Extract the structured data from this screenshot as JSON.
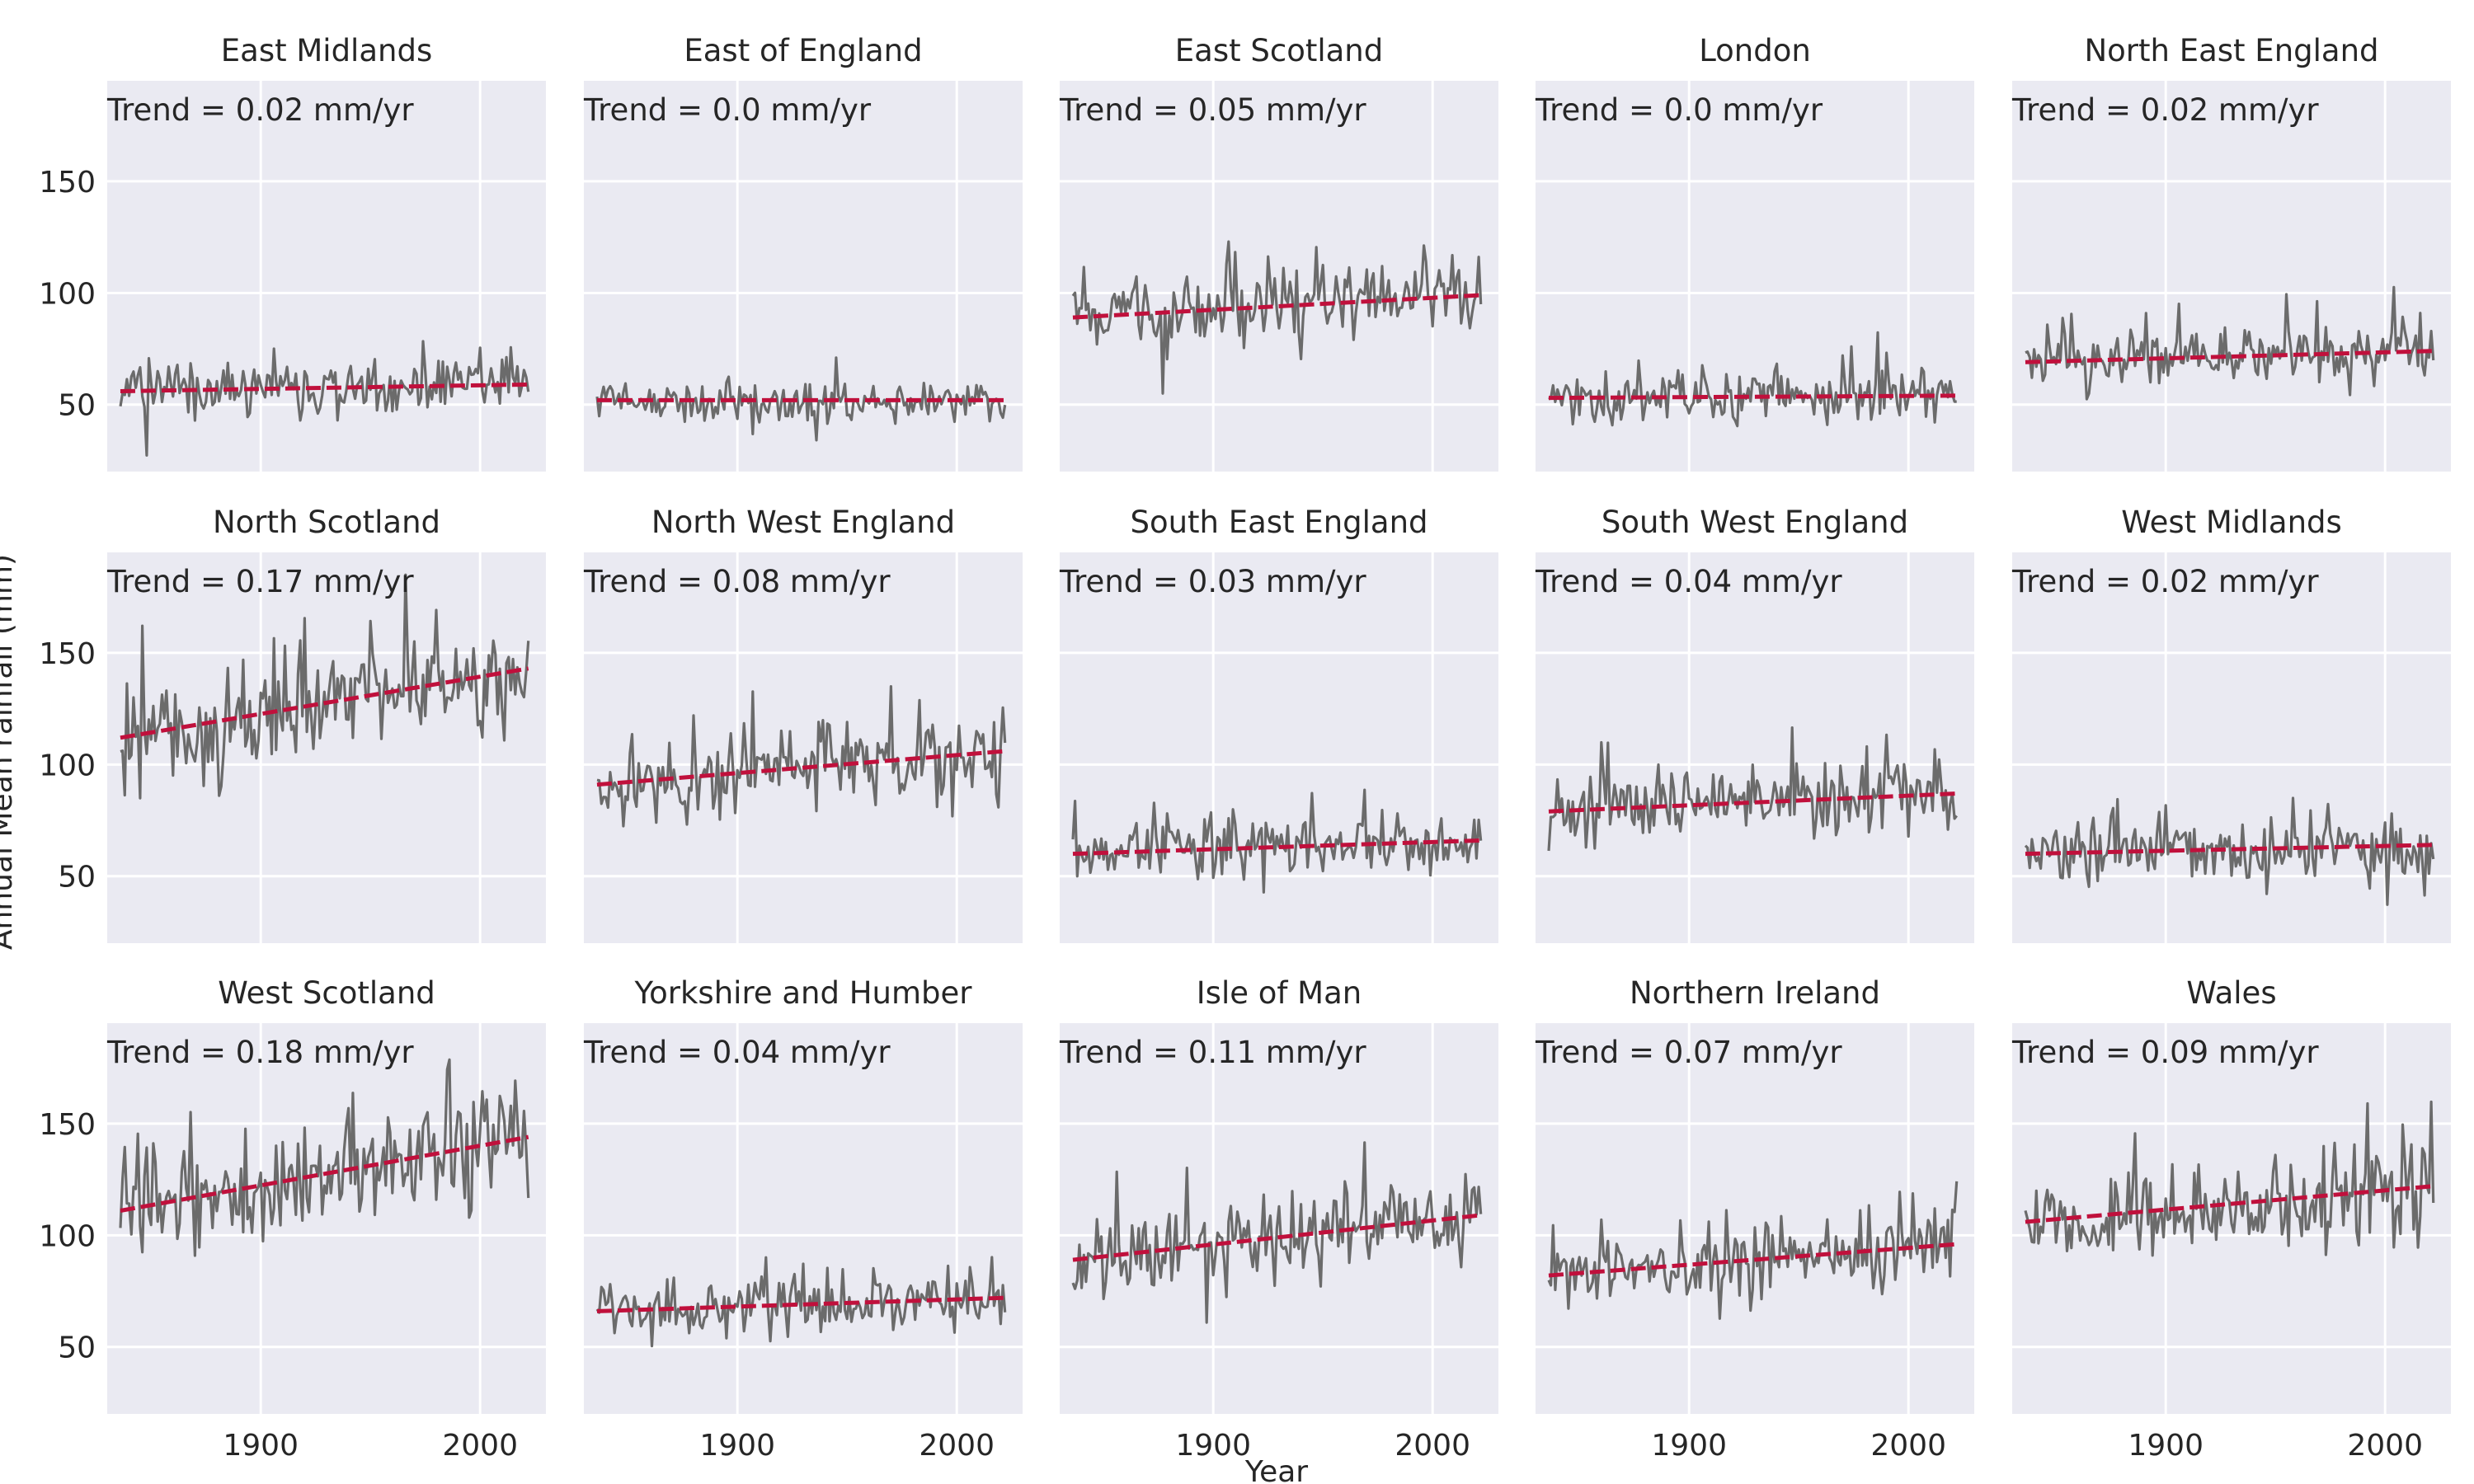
{
  "figure": {
    "xlabel": "Year",
    "ylabel": "Annual Mean rainfall (mm)",
    "x_tick_labels": [
      "1900",
      "2000"
    ],
    "y_tick_labels": [
      "50",
      "100",
      "150"
    ]
  },
  "colors": {
    "panel_bg": "#eaeaf2",
    "grid": "#ffffff",
    "series": "#6b6b6b",
    "trend": "#c0103c",
    "text": "#262626"
  },
  "chart_data": [
    {
      "type": "line",
      "title": "East Midlands",
      "annotation": "Trend = 0.02 mm/yr",
      "xlim": [
        1830,
        2030
      ],
      "ylim": [
        20,
        195
      ],
      "start_year": 1836,
      "end_year": 2022,
      "mean": 57,
      "spread": 7,
      "trend_start": 56,
      "trend_end": 59,
      "xticks": [
        1900,
        2000
      ],
      "yticks": [
        50,
        100,
        150
      ],
      "seed": 1
    },
    {
      "type": "line",
      "title": "East of England",
      "annotation": "Trend = 0.0 mm/yr",
      "xlim": [
        1830,
        2030
      ],
      "ylim": [
        20,
        195
      ],
      "start_year": 1836,
      "end_year": 2022,
      "mean": 52,
      "spread": 6,
      "trend_start": 52,
      "trend_end": 52,
      "xticks": [
        1900,
        2000
      ],
      "yticks": [
        50,
        100,
        150
      ],
      "seed": 2
    },
    {
      "type": "line",
      "title": "East Scotland",
      "annotation": "Trend = 0.05 mm/yr",
      "xlim": [
        1830,
        2030
      ],
      "ylim": [
        20,
        195
      ],
      "start_year": 1836,
      "end_year": 2022,
      "mean": 94,
      "spread": 11,
      "trend_start": 89,
      "trend_end": 99,
      "xticks": [
        1900,
        2000
      ],
      "yticks": [
        50,
        100,
        150
      ],
      "seed": 3
    },
    {
      "type": "line",
      "title": "London",
      "annotation": "Trend = 0.0 mm/yr",
      "xlim": [
        1830,
        2030
      ],
      "ylim": [
        20,
        195
      ],
      "start_year": 1836,
      "end_year": 2022,
      "mean": 53,
      "spread": 7,
      "trend_start": 53,
      "trend_end": 54,
      "xticks": [
        1900,
        2000
      ],
      "yticks": [
        50,
        100,
        150
      ],
      "seed": 4
    },
    {
      "type": "line",
      "title": "North East England",
      "annotation": "Trend = 0.02 mm/yr",
      "xlim": [
        1830,
        2030
      ],
      "ylim": [
        20,
        195
      ],
      "start_year": 1836,
      "end_year": 2022,
      "mean": 71,
      "spread": 8,
      "trend_start": 69,
      "trend_end": 74,
      "xticks": [
        1900,
        2000
      ],
      "yticks": [
        50,
        100,
        150
      ],
      "seed": 5
    },
    {
      "type": "line",
      "title": "North Scotland",
      "annotation": "Trend = 0.17 mm/yr",
      "xlim": [
        1830,
        2030
      ],
      "ylim": [
        20,
        195
      ],
      "start_year": 1836,
      "end_year": 2022,
      "mean": 127,
      "spread": 14,
      "trend_start": 112,
      "trend_end": 143,
      "xticks": [
        1900,
        2000
      ],
      "yticks": [
        50,
        100,
        150
      ],
      "seed": 6
    },
    {
      "type": "line",
      "title": "North West England",
      "annotation": "Trend = 0.08 mm/yr",
      "xlim": [
        1830,
        2030
      ],
      "ylim": [
        20,
        195
      ],
      "start_year": 1836,
      "end_year": 2022,
      "mean": 98,
      "spread": 11,
      "trend_start": 91,
      "trend_end": 106,
      "xticks": [
        1900,
        2000
      ],
      "yticks": [
        50,
        100,
        150
      ],
      "seed": 7
    },
    {
      "type": "line",
      "title": "South East England",
      "annotation": "Trend = 0.03 mm/yr",
      "xlim": [
        1830,
        2030
      ],
      "ylim": [
        20,
        195
      ],
      "start_year": 1836,
      "end_year": 2022,
      "mean": 63,
      "spread": 8,
      "trend_start": 60,
      "trend_end": 66,
      "xticks": [
        1900,
        2000
      ],
      "yticks": [
        50,
        100,
        150
      ],
      "seed": 8
    },
    {
      "type": "line",
      "title": "South West England",
      "annotation": "Trend = 0.04 mm/yr",
      "xlim": [
        1830,
        2030
      ],
      "ylim": [
        20,
        195
      ],
      "start_year": 1836,
      "end_year": 2022,
      "mean": 83,
      "spread": 10,
      "trend_start": 79,
      "trend_end": 87,
      "xticks": [
        1900,
        2000
      ],
      "yticks": [
        50,
        100,
        150
      ],
      "seed": 9
    },
    {
      "type": "line",
      "title": "West Midlands",
      "annotation": "Trend = 0.02 mm/yr",
      "xlim": [
        1830,
        2030
      ],
      "ylim": [
        20,
        195
      ],
      "start_year": 1836,
      "end_year": 2022,
      "mean": 62,
      "spread": 8,
      "trend_start": 60,
      "trend_end": 64,
      "xticks": [
        1900,
        2000
      ],
      "yticks": [
        50,
        100,
        150
      ],
      "seed": 10
    },
    {
      "type": "line",
      "title": "West Scotland",
      "annotation": "Trend = 0.18 mm/yr",
      "xlim": [
        1830,
        2030
      ],
      "ylim": [
        20,
        195
      ],
      "start_year": 1836,
      "end_year": 2022,
      "mean": 127,
      "spread": 15,
      "trend_start": 111,
      "trend_end": 144,
      "xticks": [
        1900,
        2000
      ],
      "yticks": [
        50,
        100,
        150
      ],
      "seed": 11
    },
    {
      "type": "line",
      "title": "Yorkshire and Humber",
      "annotation": "Trend = 0.04 mm/yr",
      "xlim": [
        1830,
        2030
      ],
      "ylim": [
        20,
        195
      ],
      "start_year": 1836,
      "end_year": 2022,
      "mean": 69,
      "spread": 8,
      "trend_start": 66,
      "trend_end": 72,
      "xticks": [
        1900,
        2000
      ],
      "yticks": [
        50,
        100,
        150
      ],
      "seed": 12
    },
    {
      "type": "line",
      "title": "Isle of Man",
      "annotation": "Trend = 0.11 mm/yr",
      "xlim": [
        1830,
        2030
      ],
      "ylim": [
        20,
        195
      ],
      "start_year": 1836,
      "end_year": 2022,
      "mean": 99,
      "spread": 12,
      "trend_start": 89,
      "trend_end": 109,
      "xticks": [
        1900,
        2000
      ],
      "yticks": [
        50,
        100,
        150
      ],
      "seed": 13
    },
    {
      "type": "line",
      "title": "Northern Ireland",
      "annotation": "Trend = 0.07 mm/yr",
      "xlim": [
        1830,
        2030
      ],
      "ylim": [
        20,
        195
      ],
      "start_year": 1836,
      "end_year": 2022,
      "mean": 89,
      "spread": 9,
      "trend_start": 82,
      "trend_end": 96,
      "xticks": [
        1900,
        2000
      ],
      "yticks": [
        50,
        100,
        150
      ],
      "seed": 14
    },
    {
      "type": "line",
      "title": "Wales",
      "annotation": "Trend = 0.09 mm/yr",
      "xlim": [
        1830,
        2030
      ],
      "ylim": [
        20,
        195
      ],
      "start_year": 1836,
      "end_year": 2022,
      "mean": 114,
      "spread": 13,
      "trend_start": 106,
      "trend_end": 122,
      "xticks": [
        1900,
        2000
      ],
      "yticks": [
        50,
        100,
        150
      ],
      "seed": 15
    }
  ]
}
